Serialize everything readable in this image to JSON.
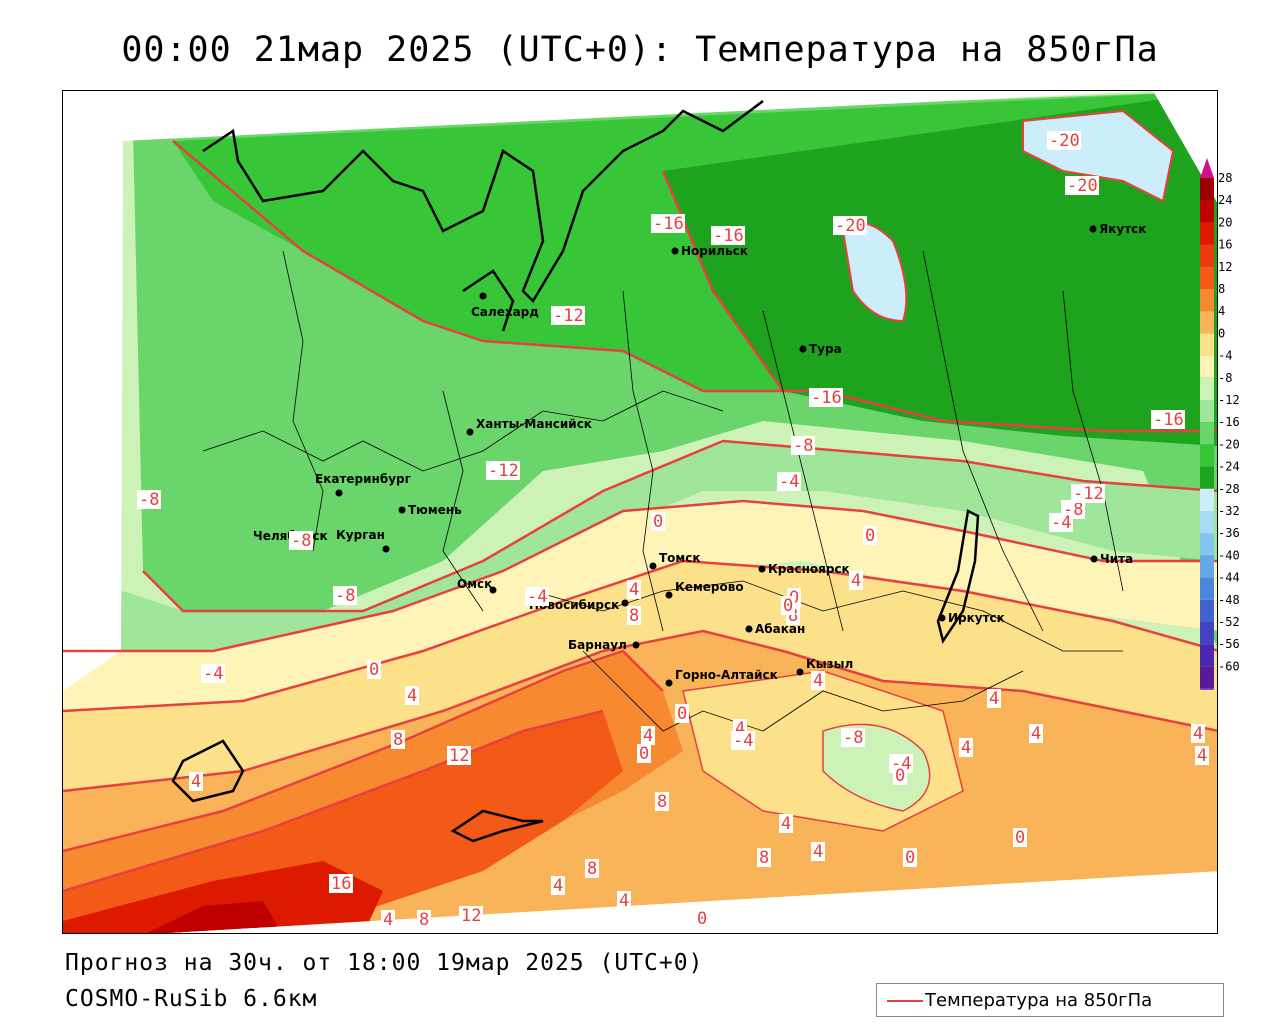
{
  "title": "00:00 21мар 2025 (UTC+0): Температура на 850гПа",
  "footer": {
    "forecast": "Прогноз на 30ч. от 18:00 19мар 2025 (UTC+0)",
    "model": "COSMO-RuSib 6.6км"
  },
  "legend": {
    "label": "Температура на 850гПа",
    "line_color": "#e64040"
  },
  "colorbar": {
    "ticks": [
      "28",
      "24",
      "20",
      "16",
      "12",
      "8",
      "4",
      "0",
      "-4",
      "-8",
      "-12",
      "-16",
      "-20",
      "-24",
      "-28",
      "-32",
      "-36",
      "-40",
      "-44",
      "-48",
      "-52",
      "-56",
      "-60"
    ],
    "colors": [
      "#9a0000",
      "#c00000",
      "#dd1a00",
      "#ec3a10",
      "#f35a18",
      "#f78a30",
      "#f9b45a",
      "#fde08a",
      "#fff4b8",
      "#cdf2b8",
      "#9fe59a",
      "#6ad56a",
      "#38c638",
      "#1ea31e",
      "#cceefa",
      "#a8dcf4",
      "#86c6ee",
      "#64a8e6",
      "#4a86dc",
      "#4462cf",
      "#4442c2",
      "#4a28b0",
      "#5a1a98"
    ]
  },
  "cities": [
    {
      "name": "Якутск"
    },
    {
      "name": "Норильск"
    },
    {
      "name": "Салехард"
    },
    {
      "name": "Тура"
    },
    {
      "name": "Ханты-Мансийск"
    },
    {
      "name": "Екатеринбург"
    },
    {
      "name": "Тюмень"
    },
    {
      "name": "Челябинск"
    },
    {
      "name": "Курган"
    },
    {
      "name": "Омск"
    },
    {
      "name": "Томск"
    },
    {
      "name": "Красноярск"
    },
    {
      "name": "Новосибирск"
    },
    {
      "name": "Кемерово"
    },
    {
      "name": "Барнаул"
    },
    {
      "name": "Абакан"
    },
    {
      "name": "Кызыл"
    },
    {
      "name": "Горно-Алтайск"
    },
    {
      "name": "Иркутск"
    },
    {
      "name": "Чита"
    }
  ],
  "isotherm_labels": [
    "-20",
    "-20",
    "-16",
    "-16",
    "-20",
    "-12",
    "-16",
    "-16",
    "-12",
    "-8",
    "-4",
    "-8",
    "-12",
    "-8",
    "-4",
    "0",
    "-4",
    "0",
    "-8",
    "-8",
    "-4",
    "0",
    "4",
    "4",
    "8",
    "0",
    "4",
    "8",
    "4",
    "4",
    "0",
    "4",
    "8",
    "0",
    "4",
    "4",
    "4",
    "4",
    "-4",
    "-8",
    "-4",
    "4",
    "0",
    "12",
    "8",
    "4",
    "8",
    "4",
    "8",
    "0",
    "4",
    "0",
    "16",
    "4",
    "8",
    "12",
    "0",
    "4",
    "0",
    "4"
  ]
}
